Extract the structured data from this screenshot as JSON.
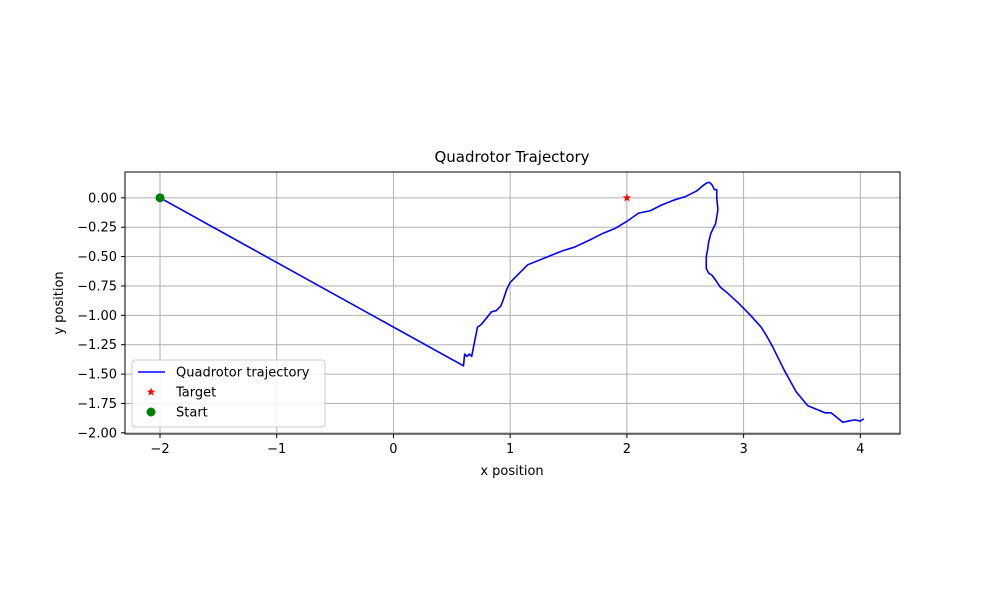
{
  "chart_data": {
    "type": "line",
    "title": "Quadrotor Trajectory",
    "xlabel": "x position",
    "ylabel": "y position",
    "xlim": [
      -2.3,
      4.34
    ],
    "ylim": [
      -2.01,
      0.22
    ],
    "grid": true,
    "legend_position": "lower-left",
    "x_ticks": [
      -2,
      -1,
      0,
      1,
      2,
      3,
      4
    ],
    "x_tick_labels": [
      "−2",
      "−1",
      "0",
      "1",
      "2",
      "3",
      "4"
    ],
    "y_ticks": [
      0.0,
      -0.25,
      -0.5,
      -0.75,
      -1.0,
      -1.25,
      -1.5,
      -1.75,
      -2.0
    ],
    "y_tick_labels": [
      "0.00",
      "−0.25",
      "−0.50",
      "−0.75",
      "−1.00",
      "−1.25",
      "−1.50",
      "−1.75",
      "−2.00"
    ],
    "series": [
      {
        "name": "Quadrotor trajectory",
        "style": "line",
        "color": "#0000ff",
        "x": [
          -2.0,
          0.6,
          0.61,
          0.63,
          0.65,
          0.67,
          0.69,
          0.72,
          0.75,
          0.8,
          0.84,
          0.88,
          0.92,
          0.94,
          0.97,
          1.0,
          1.05,
          1.1,
          1.15,
          1.3,
          1.45,
          1.55,
          1.7,
          1.8,
          1.9,
          2.0,
          2.1,
          2.2,
          2.3,
          2.4,
          2.5,
          2.6,
          2.66,
          2.69,
          2.71,
          2.73,
          2.75,
          2.77,
          2.77,
          2.78,
          2.76,
          2.72,
          2.7,
          2.69,
          2.68,
          2.68,
          2.7,
          2.73,
          2.76,
          2.8,
          2.85,
          2.95,
          3.05,
          3.15,
          3.2,
          3.25,
          3.3,
          3.35,
          3.4,
          3.45,
          3.5,
          3.55,
          3.6,
          3.65,
          3.7,
          3.75,
          3.8,
          3.85,
          3.9,
          3.95,
          4.0,
          4.03
        ],
        "y": [
          0.0,
          -1.43,
          -1.33,
          -1.35,
          -1.33,
          -1.35,
          -1.25,
          -1.1,
          -1.08,
          -1.02,
          -0.97,
          -0.96,
          -0.92,
          -0.87,
          -0.78,
          -0.72,
          -0.67,
          -0.62,
          -0.57,
          -0.51,
          -0.45,
          -0.42,
          -0.35,
          -0.3,
          -0.26,
          -0.2,
          -0.13,
          -0.11,
          -0.06,
          -0.02,
          0.01,
          0.06,
          0.11,
          0.13,
          0.13,
          0.11,
          0.07,
          0.07,
          0.0,
          -0.1,
          -0.22,
          -0.3,
          -0.38,
          -0.45,
          -0.5,
          -0.6,
          -0.64,
          -0.66,
          -0.7,
          -0.76,
          -0.8,
          -0.89,
          -0.99,
          -1.1,
          -1.18,
          -1.27,
          -1.37,
          -1.47,
          -1.56,
          -1.65,
          -1.71,
          -1.77,
          -1.79,
          -1.81,
          -1.83,
          -1.83,
          -1.87,
          -1.91,
          -1.9,
          -1.89,
          -1.9,
          -1.88
        ]
      },
      {
        "name": "Target",
        "style": "marker-star",
        "color": "#ff0000",
        "x": [
          2.0
        ],
        "y": [
          0.0
        ]
      },
      {
        "name": "Start",
        "style": "marker-circle",
        "color": "#008000",
        "x": [
          -2.0
        ],
        "y": [
          0.0
        ]
      }
    ]
  }
}
